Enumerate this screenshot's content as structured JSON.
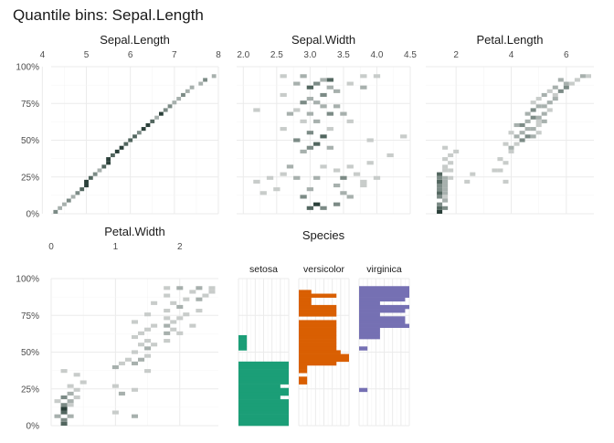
{
  "title": "Quantile bins: Sepal.Length",
  "colors": {
    "heat": [
      "#f0f0f0",
      "#c8ccca",
      "#a7b0ad",
      "#7c8b86",
      "#52665f",
      "#2b403a"
    ],
    "setosa": "#1b9e77",
    "versicolor": "#d95f02",
    "virginica": "#7570b3",
    "grid": "#ebebeb"
  },
  "chart_data": [
    {
      "type": "heatmap",
      "title": "Sepal.Length",
      "xlim": [
        4.2,
        8.0
      ],
      "ylim": [
        0,
        100
      ],
      "xticks": [
        4,
        5,
        6,
        7,
        8
      ],
      "yticks": [
        0,
        25,
        50,
        75,
        100
      ],
      "ytick_labels": [
        "0%",
        "25%",
        "50%",
        "75%",
        "100%"
      ],
      "bin_width": 0.1,
      "row_height": 2.564,
      "cells": [
        [
          4.3,
          0,
          3
        ],
        [
          4.4,
          1,
          2
        ],
        [
          4.5,
          2,
          2
        ],
        [
          4.6,
          3,
          3
        ],
        [
          4.7,
          4,
          2
        ],
        [
          4.8,
          5,
          3
        ],
        [
          4.9,
          6,
          4
        ],
        [
          5.0,
          7,
          5
        ],
        [
          5.0,
          8,
          5
        ],
        [
          5.1,
          9,
          4
        ],
        [
          5.2,
          10,
          3
        ],
        [
          5.3,
          11,
          2
        ],
        [
          5.4,
          12,
          4
        ],
        [
          5.5,
          13,
          5
        ],
        [
          5.5,
          14,
          5
        ],
        [
          5.6,
          15,
          4
        ],
        [
          5.7,
          16,
          5
        ],
        [
          5.8,
          17,
          5
        ],
        [
          5.9,
          18,
          4
        ],
        [
          6.0,
          19,
          4
        ],
        [
          6.1,
          20,
          4
        ],
        [
          6.2,
          21,
          3
        ],
        [
          6.3,
          22,
          5
        ],
        [
          6.4,
          23,
          5
        ],
        [
          6.5,
          24,
          4
        ],
        [
          6.6,
          25,
          2
        ],
        [
          6.7,
          26,
          5
        ],
        [
          6.8,
          27,
          3
        ],
        [
          6.9,
          28,
          3
        ],
        [
          7.0,
          29,
          2
        ],
        [
          7.1,
          30,
          2
        ],
        [
          7.2,
          31,
          3
        ],
        [
          7.3,
          32,
          2
        ],
        [
          7.4,
          33,
          2
        ],
        [
          7.6,
          34,
          2
        ],
        [
          7.7,
          35,
          3
        ],
        [
          7.9,
          36,
          2
        ]
      ]
    },
    {
      "type": "heatmap",
      "title": "Sepal.Width",
      "xlim": [
        1.9,
        4.5
      ],
      "ylim": [
        0,
        100
      ],
      "xticks": [
        2.0,
        2.5,
        3.0,
        3.5,
        4.0,
        4.5
      ],
      "xtick_labels": [
        "2.0",
        "2.5",
        "3.0",
        "3.5",
        "4.0",
        "4.5"
      ],
      "bin_width": 0.1,
      "row_height": 2.564,
      "cells": [
        [
          3.0,
          1,
          4
        ],
        [
          3.1,
          2,
          5
        ],
        [
          3.2,
          1,
          3
        ],
        [
          3.4,
          2,
          3
        ],
        [
          3.6,
          4,
          2
        ],
        [
          3.5,
          5,
          2
        ],
        [
          2.9,
          4,
          3
        ],
        [
          3.0,
          6,
          2
        ],
        [
          3.4,
          7,
          2
        ],
        [
          3.8,
          7,
          1
        ],
        [
          3.8,
          8,
          1
        ],
        [
          4.0,
          9,
          1
        ],
        [
          2.3,
          5,
          1
        ],
        [
          2.5,
          6,
          1
        ],
        [
          2.2,
          8,
          1
        ],
        [
          2.4,
          9,
          1
        ],
        [
          2.8,
          9,
          2
        ],
        [
          3.1,
          9,
          2
        ],
        [
          3.5,
          9,
          3
        ],
        [
          3.7,
          10,
          1
        ],
        [
          2.6,
          10,
          1
        ],
        [
          3.4,
          11,
          1
        ],
        [
          2.7,
          12,
          2
        ],
        [
          3.2,
          12,
          1
        ],
        [
          3.6,
          12,
          1
        ],
        [
          3.9,
          13,
          1
        ],
        [
          4.2,
          15,
          1
        ],
        [
          2.9,
          16,
          2
        ],
        [
          3.0,
          17,
          3
        ],
        [
          3.1,
          18,
          4
        ],
        [
          3.3,
          17,
          2
        ],
        [
          3.9,
          19,
          1
        ],
        [
          2.8,
          19,
          3
        ],
        [
          3.2,
          20,
          4
        ],
        [
          3.0,
          21,
          3
        ],
        [
          4.4,
          20,
          1
        ],
        [
          2.6,
          22,
          1
        ],
        [
          3.3,
          22,
          1
        ],
        [
          2.9,
          24,
          1
        ],
        [
          3.1,
          24,
          2
        ],
        [
          3.6,
          24,
          1
        ],
        [
          2.7,
          26,
          2
        ],
        [
          3.0,
          26,
          2
        ],
        [
          3.3,
          26,
          3
        ],
        [
          3.5,
          26,
          2
        ],
        [
          2.2,
          27,
          1
        ],
        [
          2.8,
          27,
          1
        ],
        [
          3.2,
          28,
          2
        ],
        [
          3.4,
          28,
          2
        ],
        [
          2.9,
          29,
          3
        ],
        [
          3.1,
          29,
          2
        ],
        [
          3.0,
          30,
          2
        ],
        [
          2.6,
          31,
          1
        ],
        [
          3.2,
          31,
          3
        ],
        [
          3.4,
          32,
          2
        ],
        [
          3.0,
          33,
          4
        ],
        [
          3.3,
          33,
          2
        ],
        [
          3.8,
          33,
          2
        ],
        [
          3.6,
          34,
          1
        ],
        [
          2.8,
          34,
          2
        ],
        [
          3.1,
          34,
          3
        ],
        [
          3.3,
          35,
          4
        ],
        [
          2.9,
          36,
          2
        ],
        [
          3.2,
          35,
          2
        ],
        [
          3.8,
          36,
          1
        ],
        [
          4.0,
          36,
          1
        ],
        [
          2.6,
          36,
          1
        ]
      ]
    },
    {
      "type": "heatmap",
      "title": "Petal.Length",
      "xlim": [
        0.9,
        7.0
      ],
      "ylim": [
        0,
        100
      ],
      "xticks": [
        2,
        4,
        6
      ],
      "bin_width": 0.2,
      "row_height": 2.564,
      "cells": [
        [
          1.4,
          0,
          5
        ],
        [
          1.4,
          1,
          4
        ],
        [
          1.6,
          1,
          3
        ],
        [
          1.4,
          2,
          3
        ],
        [
          1.6,
          3,
          2
        ],
        [
          1.4,
          4,
          3
        ],
        [
          1.6,
          4,
          1
        ],
        [
          1.4,
          5,
          4
        ],
        [
          1.6,
          5,
          2
        ],
        [
          1.4,
          6,
          3
        ],
        [
          1.6,
          6,
          2
        ],
        [
          1.4,
          7,
          3
        ],
        [
          1.6,
          7,
          2
        ],
        [
          1.4,
          8,
          4
        ],
        [
          1.6,
          8,
          2
        ],
        [
          1.4,
          9,
          3
        ],
        [
          1.6,
          9,
          2
        ],
        [
          1.4,
          10,
          4
        ],
        [
          1.8,
          9,
          1
        ],
        [
          1.6,
          11,
          1
        ],
        [
          1.8,
          11,
          1
        ],
        [
          1.6,
          12,
          1
        ],
        [
          1.8,
          13,
          1
        ],
        [
          1.6,
          14,
          1
        ],
        [
          1.8,
          15,
          1
        ],
        [
          2.0,
          16,
          1
        ],
        [
          1.6,
          17,
          1
        ],
        [
          2.4,
          8,
          1
        ],
        [
          2.6,
          10,
          1
        ],
        [
          3.4,
          11,
          1
        ],
        [
          3.6,
          11,
          1
        ],
        [
          3.8,
          8,
          1
        ],
        [
          3.8,
          13,
          1
        ],
        [
          4.0,
          16,
          1
        ],
        [
          3.6,
          14,
          1
        ],
        [
          4.0,
          17,
          2
        ],
        [
          3.8,
          18,
          1
        ],
        [
          4.2,
          18,
          1
        ],
        [
          4.4,
          19,
          3
        ],
        [
          4.2,
          20,
          2
        ],
        [
          4.6,
          20,
          3
        ],
        [
          4.8,
          20,
          2
        ],
        [
          4.0,
          21,
          1
        ],
        [
          4.4,
          21,
          2
        ],
        [
          5.0,
          21,
          1
        ],
        [
          4.6,
          22,
          2
        ],
        [
          4.8,
          22,
          2
        ],
        [
          4.2,
          23,
          2
        ],
        [
          4.4,
          23,
          3
        ],
        [
          5.0,
          23,
          1
        ],
        [
          4.6,
          24,
          2
        ],
        [
          5.0,
          24,
          1
        ],
        [
          5.2,
          24,
          2
        ],
        [
          4.8,
          25,
          3
        ],
        [
          5.0,
          25,
          2
        ],
        [
          4.6,
          26,
          2
        ],
        [
          5.2,
          26,
          2
        ],
        [
          4.8,
          27,
          3
        ],
        [
          5.4,
          27,
          1
        ],
        [
          5.0,
          28,
          2
        ],
        [
          5.2,
          28,
          2
        ],
        [
          5.4,
          29,
          2
        ],
        [
          4.8,
          29,
          1
        ],
        [
          5.6,
          30,
          2
        ],
        [
          5.0,
          30,
          1
        ],
        [
          5.2,
          31,
          2
        ],
        [
          5.6,
          31,
          1
        ],
        [
          5.8,
          32,
          3
        ],
        [
          5.4,
          32,
          1
        ],
        [
          6.0,
          33,
          3
        ],
        [
          5.6,
          33,
          2
        ],
        [
          6.0,
          34,
          2
        ],
        [
          6.2,
          34,
          1
        ],
        [
          5.8,
          35,
          2
        ],
        [
          6.4,
          35,
          1
        ],
        [
          6.6,
          36,
          2
        ],
        [
          6.8,
          36,
          1
        ]
      ]
    },
    {
      "type": "heatmap",
      "title": "Petal.Width",
      "xlim": [
        0,
        2.6
      ],
      "ylim": [
        0,
        100
      ],
      "xticks": [
        0,
        1,
        2
      ],
      "yticks": [
        0,
        25,
        50,
        75,
        100
      ],
      "ytick_labels": [
        "0%",
        "25%",
        "50%",
        "75%",
        "100%"
      ],
      "bin_width": 0.1,
      "row_height": 2.564,
      "cells": [
        [
          0.2,
          0,
          4
        ],
        [
          0.2,
          1,
          3
        ],
        [
          0.1,
          2,
          2
        ],
        [
          0.2,
          3,
          4
        ],
        [
          0.3,
          2,
          2
        ],
        [
          0.2,
          4,
          5
        ],
        [
          0.2,
          5,
          3
        ],
        [
          0.3,
          5,
          1
        ],
        [
          0.1,
          6,
          1
        ],
        [
          0.3,
          6,
          2
        ],
        [
          0.2,
          7,
          3
        ],
        [
          0.4,
          7,
          1
        ],
        [
          0.3,
          8,
          2
        ],
        [
          0.4,
          9,
          1
        ],
        [
          0.3,
          10,
          1
        ],
        [
          0.5,
          11,
          1
        ],
        [
          0.4,
          13,
          1
        ],
        [
          0.2,
          14,
          1
        ],
        [
          1.0,
          3,
          1
        ],
        [
          1.3,
          2,
          2
        ],
        [
          1.3,
          9,
          1
        ],
        [
          1.1,
          8,
          2
        ],
        [
          1.0,
          10,
          1
        ],
        [
          1.5,
          14,
          1
        ],
        [
          1.0,
          15,
          2
        ],
        [
          1.1,
          16,
          1
        ],
        [
          1.3,
          16,
          2
        ],
        [
          1.2,
          17,
          1
        ],
        [
          1.4,
          17,
          2
        ],
        [
          1.5,
          18,
          1
        ],
        [
          1.3,
          19,
          1
        ],
        [
          1.5,
          20,
          2
        ],
        [
          1.4,
          21,
          1
        ],
        [
          1.6,
          21,
          1
        ],
        [
          1.5,
          22,
          1
        ],
        [
          1.8,
          22,
          1
        ],
        [
          1.3,
          23,
          1
        ],
        [
          1.4,
          24,
          1
        ],
        [
          1.8,
          24,
          2
        ],
        [
          2.0,
          24,
          1
        ],
        [
          1.5,
          25,
          1
        ],
        [
          1.9,
          25,
          1
        ],
        [
          1.6,
          26,
          1
        ],
        [
          1.8,
          26,
          2
        ],
        [
          2.2,
          26,
          1
        ],
        [
          1.3,
          27,
          1
        ],
        [
          1.9,
          27,
          1
        ],
        [
          2.0,
          28,
          1
        ],
        [
          1.8,
          28,
          1
        ],
        [
          1.5,
          29,
          1
        ],
        [
          2.1,
          29,
          1
        ],
        [
          1.8,
          30,
          1
        ],
        [
          2.3,
          30,
          1
        ],
        [
          2.0,
          31,
          2
        ],
        [
          1.9,
          32,
          1
        ],
        [
          1.6,
          32,
          1
        ],
        [
          2.1,
          33,
          1
        ],
        [
          2.3,
          33,
          2
        ],
        [
          1.8,
          34,
          1
        ],
        [
          2.4,
          34,
          1
        ],
        [
          2.5,
          35,
          1
        ],
        [
          2.2,
          35,
          1
        ],
        [
          2.3,
          36,
          2
        ],
        [
          1.8,
          36,
          1
        ],
        [
          2.0,
          36,
          2
        ],
        [
          2.5,
          36,
          1
        ]
      ]
    },
    {
      "type": "bar",
      "title": "Species",
      "orientation": "horizontal",
      "facets": [
        "setosa",
        "versicolor",
        "virginica"
      ],
      "ylim": [
        0,
        100
      ],
      "row_height": 2.564,
      "xmax": 12,
      "series": [
        {
          "name": "setosa",
          "values": [
            12,
            12,
            12,
            12,
            12,
            12,
            12,
            10,
            12,
            12,
            10,
            12,
            12,
            12,
            12,
            12,
            12,
            0,
            0,
            0,
            2,
            2,
            2,
            2,
            0,
            0,
            0,
            0,
            0,
            0,
            0,
            0,
            0,
            0,
            0,
            0,
            0
          ]
        },
        {
          "name": "versicolor",
          "values": [
            0,
            0,
            0,
            0,
            0,
            0,
            0,
            0,
            0,
            0,
            0,
            2,
            2,
            0,
            2,
            2,
            9,
            12,
            12,
            10,
            9,
            9,
            9,
            9,
            9,
            9,
            9,
            9,
            0,
            9,
            9,
            9,
            3,
            3,
            9,
            3,
            0
          ]
        },
        {
          "name": "virginica",
          "values": [
            0,
            0,
            0,
            0,
            0,
            0,
            0,
            0,
            0,
            2,
            0,
            0,
            0,
            0,
            0,
            0,
            0,
            0,
            0,
            0,
            2,
            0,
            0,
            5,
            5,
            5,
            12,
            11,
            11,
            5,
            11,
            12,
            5,
            11,
            12,
            12,
            12
          ]
        }
      ]
    }
  ]
}
